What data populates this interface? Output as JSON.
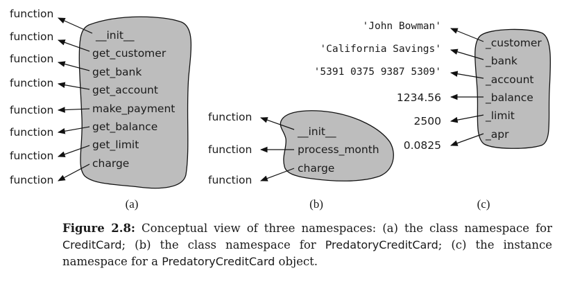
{
  "panels": [
    {
      "sublabel": "(a)",
      "targets": [
        "function",
        "function",
        "function",
        "function",
        "function",
        "function",
        "function",
        "function"
      ],
      "names": [
        "__init__",
        "get_customer",
        "get_bank",
        "get_account",
        "make_payment",
        "get_balance",
        "get_limit",
        "charge"
      ]
    },
    {
      "sublabel": "(b)",
      "targets": [
        "function",
        "function",
        "function"
      ],
      "names": [
        "__init__",
        "process_month",
        "charge"
      ]
    },
    {
      "sublabel": "(c)",
      "targets": [
        "'John Bowman'",
        "'California Savings'",
        "'5391 0375 9387 5309'",
        "1234.56",
        "2500",
        "0.0825"
      ],
      "names": [
        "_customer",
        "_bank",
        "_account",
        "_balance",
        "_limit",
        "_apr"
      ]
    }
  ],
  "caption": {
    "label": "Figure 2.8:",
    "segments": [
      {
        "text": " Conceptual view of three namespaces: (a) the class namespace for ",
        "sans": false
      },
      {
        "text": "CreditCard",
        "sans": true
      },
      {
        "text": "; (b) the class namespace for ",
        "sans": false
      },
      {
        "text": "PredatoryCreditCard",
        "sans": true
      },
      {
        "text": "; (c) the instance namespace for a ",
        "sans": false
      },
      {
        "text": "PredatoryCreditCard",
        "sans": true
      },
      {
        "text": " object.",
        "sans": false
      }
    ]
  },
  "colors": {
    "blob_fill": "#bdbdbd",
    "outline": "#111111",
    "text": "#1a1a1a"
  }
}
